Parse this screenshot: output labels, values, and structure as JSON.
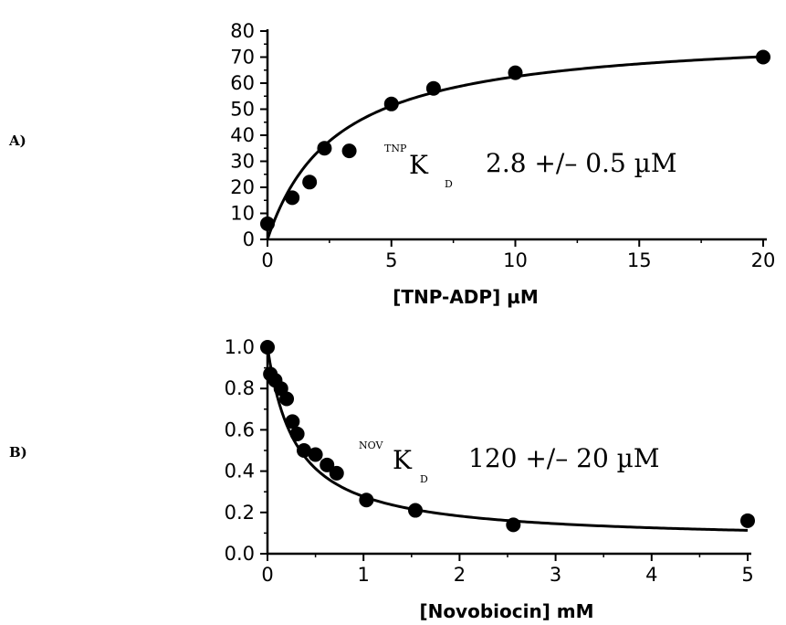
{
  "chart_data": [
    {
      "type": "scatter",
      "panel_label": "A)",
      "xlabel": "[TNP-ADP] µM",
      "xlim": [
        0,
        20
      ],
      "ylim": [
        0,
        80
      ],
      "xticks": [
        "0",
        "5",
        "10",
        "15",
        "20"
      ],
      "yticks": [
        "0",
        "10",
        "20",
        "30",
        "40",
        "50",
        "60",
        "70",
        "80"
      ],
      "annotation": {
        "superscript": "TNP",
        "letter": "K",
        "subscript": "D",
        "value": "2.8 +/– 0.5 µM"
      },
      "series": [
        {
          "points": [
            [
              0,
              6
            ],
            [
              1,
              16
            ],
            [
              1.7,
              22
            ],
            [
              2.3,
              35
            ],
            [
              3.3,
              34
            ],
            [
              5,
              52
            ],
            [
              6.7,
              58
            ],
            [
              10,
              64
            ],
            [
              20,
              70
            ]
          ],
          "fit": {
            "model": "saturation",
            "bmax": 80,
            "kd": 2.8
          }
        }
      ]
    },
    {
      "type": "scatter",
      "panel_label": "B)",
      "xlabel": "[Novobiocin] mM",
      "xlim": [
        0,
        5
      ],
      "ylim": [
        0,
        1.0
      ],
      "xticks": [
        "0",
        "1",
        "2",
        "3",
        "4",
        "5"
      ],
      "yticks": [
        "0.0",
        "0.2",
        "0.4",
        "0.6",
        "0.8",
        "1.0"
      ],
      "annotation": {
        "superscript": "NOV",
        "letter": "K",
        "subscript": "D",
        "value": "120 +/– 20 µM"
      },
      "series": [
        {
          "points": [
            [
              0,
              1.0
            ],
            [
              0.03,
              0.87
            ],
            [
              0.08,
              0.84
            ],
            [
              0.14,
              0.8
            ],
            [
              0.2,
              0.75
            ],
            [
              0.26,
              0.64
            ],
            [
              0.31,
              0.58
            ],
            [
              0.38,
              0.5
            ],
            [
              0.5,
              0.48
            ],
            [
              0.62,
              0.43
            ],
            [
              0.72,
              0.39
            ],
            [
              1.03,
              0.26
            ],
            [
              1.54,
              0.21
            ],
            [
              2.56,
              0.14
            ],
            [
              5.0,
              0.16
            ]
          ],
          "fit": {
            "model": "inhibition",
            "top": 1.0,
            "ic50": 0.3,
            "floor": 0.06
          }
        }
      ]
    }
  ]
}
